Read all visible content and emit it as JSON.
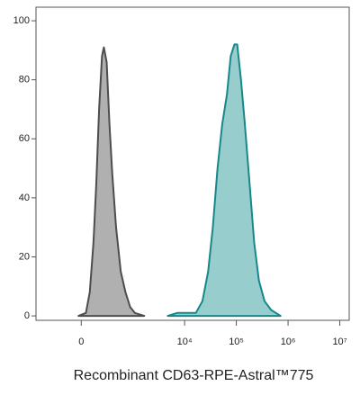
{
  "chart_data": {
    "type": "area",
    "x_label": "Recombinant CD63-RPE-Astral™775",
    "x_scale": "biexponential",
    "xlim": [
      -740,
      15200000
    ],
    "xticks": [
      0,
      {
        "value": 10000,
        "label": "10⁴"
      },
      {
        "value": 100000,
        "label": "10⁵"
      },
      {
        "value": 1000000,
        "label": "10⁶"
      },
      {
        "value": 10000000,
        "label": "10⁷"
      }
    ],
    "ylim": [
      -1.5,
      104.6
    ],
    "yticks": [
      0,
      20,
      40,
      60,
      80,
      100
    ],
    "series": [
      {
        "color": "#b0b0b0",
        "line_color": "#4d4d4d",
        "x": [
          -25,
          42,
          78,
          115,
          145,
          177,
          213,
          238,
          279,
          324,
          375,
          452,
          566,
          706,
          875,
          1083,
          1656
        ],
        "values": [
          0,
          1,
          8,
          25,
          45,
          70,
          88,
          91,
          86,
          65,
          48,
          30,
          15,
          8,
          3,
          1,
          0
        ]
      },
      {
        "color": "#97cdcc",
        "line_color": "#16888a",
        "x": [
          4720,
          7190,
          16500,
          22100,
          28500,
          35100,
          43300,
          53400,
          65800,
          77800,
          92000,
          104000,
          123000,
          146000,
          180000,
          221000,
          273000,
          351000,
          471000,
          716000
        ],
        "values": [
          0,
          1,
          1,
          5,
          15,
          30,
          50,
          65,
          75,
          88,
          92,
          92,
          80,
          65,
          45,
          25,
          12,
          5,
          2,
          0
        ]
      }
    ]
  }
}
